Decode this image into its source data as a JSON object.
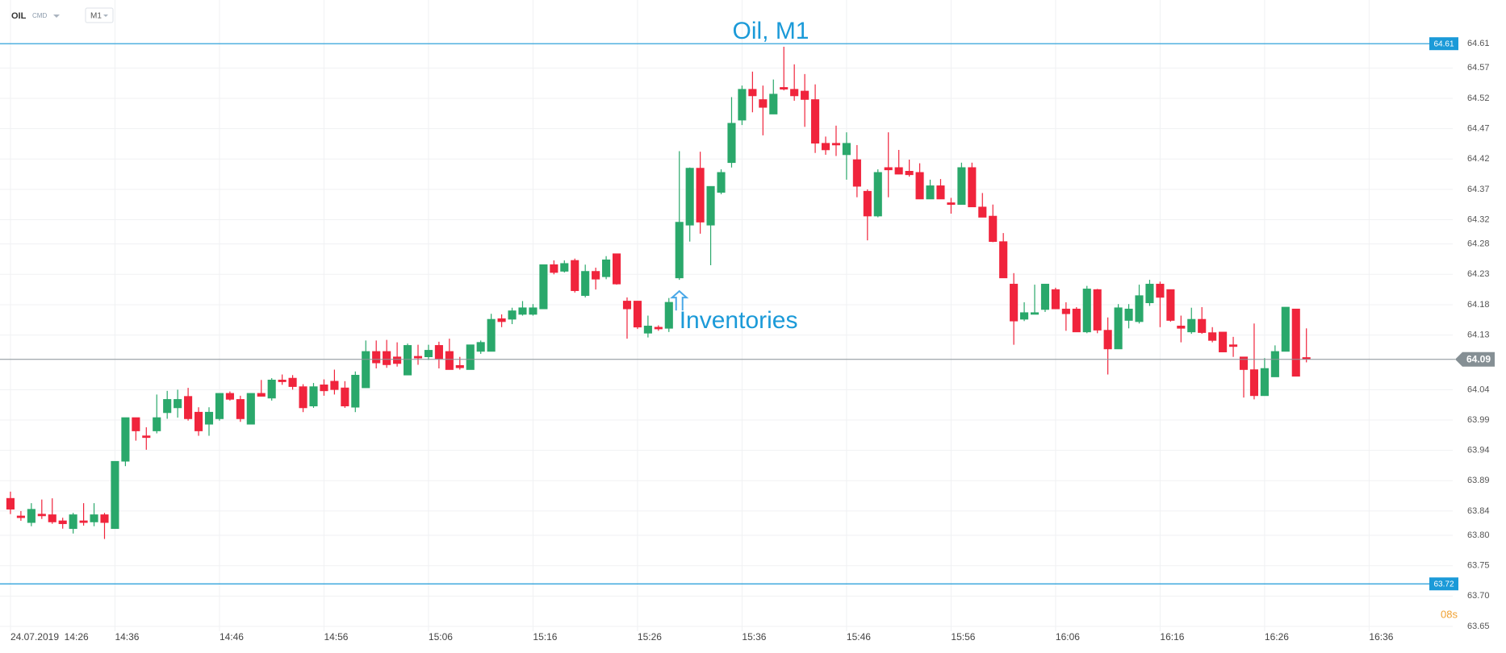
{
  "header": {
    "symbol": "OIL",
    "market": "CMD",
    "timeframe": "M1"
  },
  "chart_data": {
    "type": "candlestick",
    "title": "Oil, M1",
    "x": [
      "14:26",
      "14:27",
      "14:28",
      "14:29",
      "14:30",
      "14:31",
      "14:32",
      "14:33",
      "14:34",
      "14:35",
      "14:36",
      "14:37",
      "14:38",
      "14:39",
      "14:40",
      "14:41",
      "14:42",
      "14:43",
      "14:44",
      "14:45",
      "14:46",
      "14:47",
      "14:48",
      "14:49",
      "14:50",
      "14:51",
      "14:52",
      "14:53",
      "14:54",
      "14:55",
      "14:56",
      "14:57",
      "14:58",
      "14:59",
      "15:00",
      "15:01",
      "15:02",
      "15:03",
      "15:04",
      "15:05",
      "15:06",
      "15:07",
      "15:08",
      "15:09",
      "15:10",
      "15:11",
      "15:12",
      "15:13",
      "15:14",
      "15:15",
      "15:16",
      "15:17",
      "15:18",
      "15:19",
      "15:20",
      "15:21",
      "15:22",
      "15:23",
      "15:24",
      "15:25",
      "15:26",
      "15:27",
      "15:28",
      "15:29",
      "15:30",
      "15:31",
      "15:32",
      "15:33",
      "15:34",
      "15:35",
      "15:36",
      "15:37",
      "15:38",
      "15:39",
      "15:40",
      "15:41",
      "15:42",
      "15:43",
      "15:44",
      "15:45",
      "15:46",
      "15:47",
      "15:48",
      "15:49",
      "15:50",
      "15:51",
      "15:52",
      "15:53",
      "15:54",
      "15:55",
      "15:56",
      "15:57",
      "15:58",
      "15:59",
      "16:00",
      "16:01",
      "16:02",
      "16:03",
      "16:04",
      "16:05",
      "16:06",
      "16:07",
      "16:08",
      "16:09",
      "16:10",
      "16:11",
      "16:12",
      "16:13",
      "16:14",
      "16:15",
      "16:16",
      "16:17",
      "16:18",
      "16:19",
      "16:20",
      "16:21",
      "16:22",
      "16:23",
      "16:24",
      "16:25",
      "16:26",
      "16:27",
      "16:28",
      "16:29",
      "16:30"
    ],
    "open": [
      63.861,
      63.832,
      63.821,
      63.835,
      63.834,
      63.824,
      63.811,
      63.824,
      63.822,
      63.834,
      63.811,
      63.922,
      63.994,
      63.964,
      63.972,
      64.002,
      64.01,
      64.029,
      64.003,
      63.983,
      63.992,
      64.034,
      64.024,
      63.983,
      64.034,
      64.026,
      64.056,
      64.059,
      64.045,
      64.013,
      64.048,
      64.054,
      64.043,
      64.011,
      64.043,
      64.103,
      64.103,
      64.094,
      64.064,
      64.095,
      64.094,
      64.113,
      64.103,
      64.08,
      64.073,
      64.103,
      64.103,
      64.157,
      64.156,
      64.164,
      64.164,
      64.173,
      64.246,
      64.235,
      64.253,
      64.195,
      64.235,
      64.226,
      64.264,
      64.186,
      64.186,
      64.133,
      64.143,
      64.141,
      64.224,
      64.311,
      64.405,
      64.311,
      64.365,
      64.414,
      64.484,
      64.535,
      64.518,
      64.494,
      64.538,
      64.535,
      64.532,
      64.518,
      64.446,
      64.446,
      64.427,
      64.419,
      64.367,
      64.326,
      64.406,
      64.406,
      64.4,
      64.398,
      64.354,
      64.376,
      64.348,
      64.345,
      64.406,
      64.341,
      64.326,
      64.284,
      64.214,
      64.156,
      64.164,
      64.172,
      64.205,
      64.173,
      64.173,
      64.135,
      64.205,
      64.138,
      64.107,
      64.154,
      64.152,
      64.183,
      64.214,
      64.205,
      64.145,
      64.135,
      64.156,
      64.134,
      64.135,
      64.114,
      64.094,
      64.073,
      64.03,
      64.061,
      64.103,
      64.173,
      64.093
    ],
    "high": [
      63.872,
      63.84,
      63.853,
      63.859,
      63.861,
      63.829,
      63.837,
      63.853,
      63.853,
      63.837,
      63.922,
      63.994,
      63.994,
      63.978,
      64.032,
      64.038,
      64.04,
      64.043,
      64.011,
      64.011,
      64.034,
      64.037,
      64.03,
      64.034,
      64.056,
      64.059,
      64.065,
      64.064,
      64.049,
      64.051,
      64.057,
      64.073,
      64.054,
      64.07,
      64.121,
      64.121,
      64.122,
      64.118,
      64.116,
      64.114,
      64.114,
      64.119,
      64.124,
      64.094,
      64.114,
      64.121,
      64.165,
      64.164,
      64.175,
      64.186,
      64.181,
      64.246,
      64.253,
      64.253,
      64.256,
      64.246,
      64.241,
      64.26,
      64.264,
      64.192,
      64.186,
      64.162,
      64.146,
      64.191,
      64.433,
      64.406,
      64.432,
      64.375,
      64.403,
      64.522,
      64.541,
      64.564,
      64.541,
      64.551,
      64.605,
      64.576,
      64.56,
      64.543,
      64.457,
      64.475,
      64.464,
      64.443,
      64.37,
      64.403,
      64.464,
      64.435,
      64.419,
      64.413,
      64.386,
      64.387,
      64.356,
      64.414,
      64.414,
      64.364,
      64.345,
      64.298,
      64.232,
      64.184,
      64.213,
      64.214,
      64.208,
      64.184,
      64.176,
      64.211,
      64.206,
      64.159,
      64.181,
      64.181,
      64.213,
      64.221,
      64.218,
      64.205,
      64.162,
      64.175,
      64.176,
      64.143,
      64.135,
      64.127,
      64.094,
      64.149,
      64.092,
      64.113,
      64.176,
      64.173,
      64.141
    ],
    "low": [
      63.835,
      63.824,
      63.815,
      63.827,
      63.819,
      63.811,
      63.803,
      63.816,
      63.815,
      63.794,
      63.811,
      63.914,
      63.956,
      63.941,
      63.968,
      63.992,
      63.994,
      63.989,
      63.964,
      63.964,
      63.989,
      64.022,
      63.987,
      63.983,
      64.029,
      64.022,
      64.048,
      64.04,
      64.003,
      64.01,
      64.03,
      64.032,
      64.01,
      64.003,
      64.043,
      64.075,
      64.076,
      64.078,
      64.064,
      64.081,
      64.089,
      64.075,
      64.073,
      64.073,
      64.073,
      64.099,
      64.103,
      64.143,
      64.148,
      64.162,
      64.162,
      64.173,
      64.23,
      64.233,
      64.2,
      64.192,
      64.205,
      64.222,
      64.213,
      64.124,
      64.14,
      64.126,
      64.137,
      64.135,
      64.221,
      64.284,
      64.297,
      64.245,
      64.362,
      64.406,
      64.476,
      64.497,
      64.459,
      64.494,
      64.533,
      64.516,
      64.473,
      64.43,
      64.427,
      64.425,
      64.386,
      64.357,
      64.286,
      64.324,
      64.357,
      64.395,
      64.391,
      64.354,
      64.354,
      64.354,
      64.33,
      64.345,
      64.341,
      64.324,
      64.283,
      64.224,
      64.114,
      64.153,
      64.164,
      64.168,
      64.173,
      64.137,
      64.135,
      64.133,
      64.133,
      64.065,
      64.107,
      64.141,
      64.149,
      64.178,
      64.143,
      64.152,
      64.118,
      64.132,
      64.132,
      64.118,
      64.102,
      64.094,
      64.027,
      64.024,
      64.03,
      64.061,
      64.103,
      64.062,
      64.085
    ],
    "close": [
      63.843,
      63.829,
      63.843,
      63.832,
      63.822,
      63.819,
      63.834,
      63.821,
      63.834,
      63.821,
      63.922,
      63.994,
      63.972,
      63.961,
      63.994,
      64.024,
      64.024,
      63.992,
      63.972,
      64.003,
      64.034,
      64.024,
      63.992,
      64.034,
      64.029,
      64.056,
      64.053,
      64.045,
      64.01,
      64.045,
      64.038,
      64.04,
      64.013,
      64.064,
      64.103,
      64.084,
      64.081,
      64.083,
      64.113,
      64.092,
      64.105,
      64.091,
      64.073,
      64.076,
      64.114,
      64.118,
      64.156,
      64.152,
      64.17,
      64.175,
      64.175,
      64.246,
      64.233,
      64.248,
      64.203,
      64.235,
      64.222,
      64.254,
      64.214,
      64.173,
      64.143,
      64.145,
      64.14,
      64.184,
      64.316,
      64.405,
      64.316,
      64.375,
      64.398,
      64.479,
      64.535,
      64.524,
      64.505,
      64.527,
      64.535,
      64.524,
      64.518,
      64.446,
      64.435,
      64.443,
      64.446,
      64.375,
      64.326,
      64.398,
      64.402,
      64.395,
      64.394,
      64.354,
      64.376,
      64.354,
      64.345,
      64.406,
      64.341,
      64.324,
      64.284,
      64.224,
      64.153,
      64.167,
      64.167,
      64.214,
      64.173,
      64.165,
      64.135,
      64.206,
      64.138,
      64.107,
      64.175,
      64.173,
      64.195,
      64.214,
      64.192,
      64.154,
      64.141,
      64.156,
      64.134,
      64.121,
      64.102,
      64.111,
      64.073,
      64.03,
      64.075,
      64.103,
      64.176,
      64.062,
      64.09
    ],
    "up_color": "#2aa86b",
    "down_color": "#f0243c",
    "xlim": [
      "14:25",
      "16:44"
    ],
    "xticks": [
      {
        "value": "14:26",
        "label": "24.07.2019  14:26"
      },
      "14:36",
      "14:46",
      "14:56",
      "15:06",
      "15:16",
      "15:26",
      "15:36",
      "15:46",
      "15:56",
      "16:06",
      "16:16",
      "16:26",
      "16:36"
    ],
    "ylim": [
      63.642,
      64.682
    ],
    "yticks": [
      64.61,
      64.57,
      64.52,
      64.47,
      64.42,
      64.37,
      64.32,
      64.28,
      64.23,
      64.18,
      64.13,
      64.09,
      64.04,
      63.99,
      63.94,
      63.89,
      63.84,
      {
        "value": 63.8,
        "label": "63.80"
      },
      63.75,
      {
        "value": 63.7,
        "label": "63.70"
      },
      63.65
    ],
    "grid": true,
    "high_line": 64.61,
    "low_line": 63.72,
    "last_price": 64.09,
    "annotation": {
      "text": "Inventories",
      "x": "15:30"
    },
    "countdown": "08s"
  }
}
